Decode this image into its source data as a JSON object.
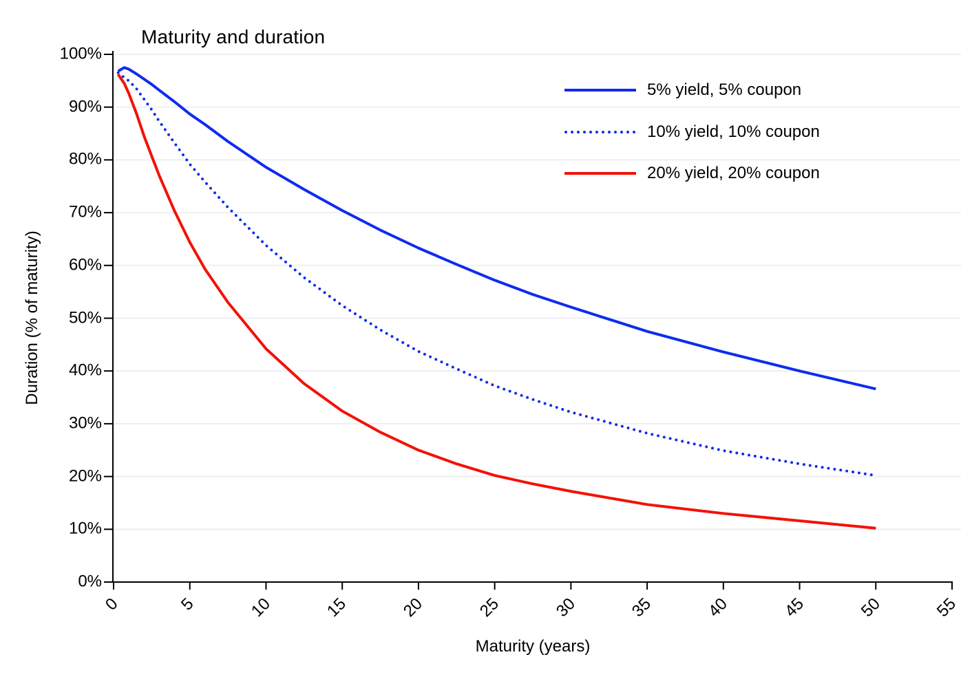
{
  "page": {
    "background": "#ffffff"
  },
  "chart_data": {
    "type": "line",
    "title": "Maturity and duration",
    "xlabel": "Maturity (years)",
    "ylabel": "Duration (% of maturity)",
    "xlim": [
      0,
      55
    ],
    "ylim": [
      0,
      100
    ],
    "grid": "horizontal",
    "legend_position": "upper-right-inside",
    "x_ticks": [
      0,
      5,
      10,
      15,
      20,
      25,
      30,
      35,
      40,
      45,
      50,
      55
    ],
    "x_tick_labels": [
      "0",
      "5",
      "10",
      "15",
      "20",
      "25",
      "30",
      "35",
      "40",
      "45",
      "50",
      "55"
    ],
    "y_ticks": [
      0,
      10,
      20,
      30,
      40,
      50,
      60,
      70,
      80,
      90,
      100
    ],
    "y_tick_labels": [
      "0%",
      "10%",
      "20%",
      "30%",
      "40%",
      "50%",
      "60%",
      "70%",
      "80%",
      "90%",
      "100%"
    ],
    "colors": {
      "blue": "#0f2bf0",
      "red": "#f41106",
      "grid": "#efeff1",
      "axis": "#000000",
      "text": "#000000"
    },
    "x": [
      0.3,
      0.7,
      1,
      1.5,
      2,
      2.5,
      3,
      4,
      5,
      6,
      7.5,
      10,
      12.5,
      15,
      17.5,
      20,
      22.5,
      25,
      27.5,
      30,
      35,
      40,
      45,
      50
    ],
    "series": [
      {
        "name": "5% yield, 5% coupon",
        "color": "#0f2bf0",
        "style": "solid",
        "values": [
          96.8,
          97.5,
          97.2,
          96.3,
          95.3,
          94.3,
          93.2,
          91.0,
          88.7,
          86.7,
          83.5,
          78.6,
          74.4,
          70.4,
          66.7,
          63.3,
          60.2,
          57.2,
          54.5,
          52.1,
          47.5,
          43.6,
          40.0,
          36.6
        ]
      },
      {
        "name": "10% yield, 10% coupon",
        "color": "#0f2bf0",
        "style": "dotted",
        "values": [
          96.5,
          95.6,
          95.0,
          93.5,
          91.5,
          89.5,
          87.3,
          83.2,
          79.2,
          75.8,
          71.0,
          63.8,
          57.7,
          52.4,
          47.8,
          43.7,
          40.4,
          37.2,
          34.6,
          32.2,
          28.2,
          24.9,
          22.4,
          20.2
        ]
      },
      {
        "name": "20% yield, 20% coupon",
        "color": "#f41106",
        "style": "solid",
        "values": [
          96.2,
          94.5,
          92.6,
          88.8,
          84.5,
          80.7,
          77.0,
          70.3,
          64.4,
          59.3,
          53.0,
          44.2,
          37.6,
          32.4,
          28.4,
          25.0,
          22.4,
          20.2,
          18.6,
          17.2,
          14.7,
          13.0,
          11.6,
          10.2
        ]
      }
    ]
  }
}
